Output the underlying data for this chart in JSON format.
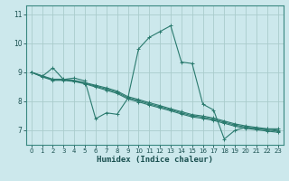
{
  "xlabel": "Humidex (Indice chaleur)",
  "bg_color": "#cce8ec",
  "grid_color": "#aacccc",
  "line_color": "#2a7a6e",
  "xlim": [
    -0.5,
    23.5
  ],
  "ylim": [
    6.5,
    11.3
  ],
  "xticks": [
    0,
    1,
    2,
    3,
    4,
    5,
    6,
    7,
    8,
    9,
    10,
    11,
    12,
    13,
    14,
    15,
    16,
    17,
    18,
    19,
    20,
    21,
    22,
    23
  ],
  "yticks": [
    7,
    8,
    9,
    10,
    11
  ],
  "lines": [
    {
      "x": [
        0,
        1,
        2,
        3,
        4,
        5,
        6,
        7,
        8,
        9,
        10,
        11,
        12,
        13,
        14,
        15,
        16,
        17,
        18,
        19,
        20,
        21,
        22,
        23
      ],
      "y": [
        9.0,
        8.85,
        9.15,
        8.75,
        8.8,
        8.7,
        7.4,
        7.6,
        7.55,
        8.1,
        9.8,
        10.2,
        10.4,
        10.6,
        9.35,
        9.3,
        7.9,
        7.7,
        6.7,
        7.0,
        7.1,
        7.05,
        7.05,
        7.05
      ]
    },
    {
      "x": [
        0,
        1,
        2,
        3,
        4,
        5,
        6,
        7,
        8,
        9,
        10,
        11,
        12,
        13,
        14,
        15,
        16,
        17,
        18,
        19,
        20,
        21,
        22,
        23
      ],
      "y": [
        9.0,
        8.88,
        8.76,
        8.76,
        8.72,
        8.64,
        8.55,
        8.46,
        8.35,
        8.16,
        8.06,
        7.95,
        7.85,
        7.74,
        7.64,
        7.54,
        7.49,
        7.42,
        7.32,
        7.22,
        7.15,
        7.1,
        7.05,
        7.0
      ]
    },
    {
      "x": [
        0,
        1,
        2,
        3,
        4,
        5,
        6,
        7,
        8,
        9,
        10,
        11,
        12,
        13,
        14,
        15,
        16,
        17,
        18,
        19,
        20,
        21,
        22,
        23
      ],
      "y": [
        9.0,
        8.86,
        8.74,
        8.74,
        8.7,
        8.62,
        8.52,
        8.42,
        8.31,
        8.12,
        8.02,
        7.91,
        7.81,
        7.71,
        7.6,
        7.5,
        7.45,
        7.38,
        7.28,
        7.18,
        7.11,
        7.06,
        7.01,
        6.97
      ]
    },
    {
      "x": [
        0,
        1,
        2,
        3,
        4,
        5,
        6,
        7,
        8,
        9,
        10,
        11,
        12,
        13,
        14,
        15,
        16,
        17,
        18,
        19,
        20,
        21,
        22,
        23
      ],
      "y": [
        9.0,
        8.84,
        8.72,
        8.72,
        8.68,
        8.6,
        8.49,
        8.38,
        8.27,
        8.08,
        7.98,
        7.87,
        7.77,
        7.67,
        7.56,
        7.46,
        7.41,
        7.34,
        7.24,
        7.14,
        7.07,
        7.02,
        6.97,
        6.93
      ]
    }
  ]
}
